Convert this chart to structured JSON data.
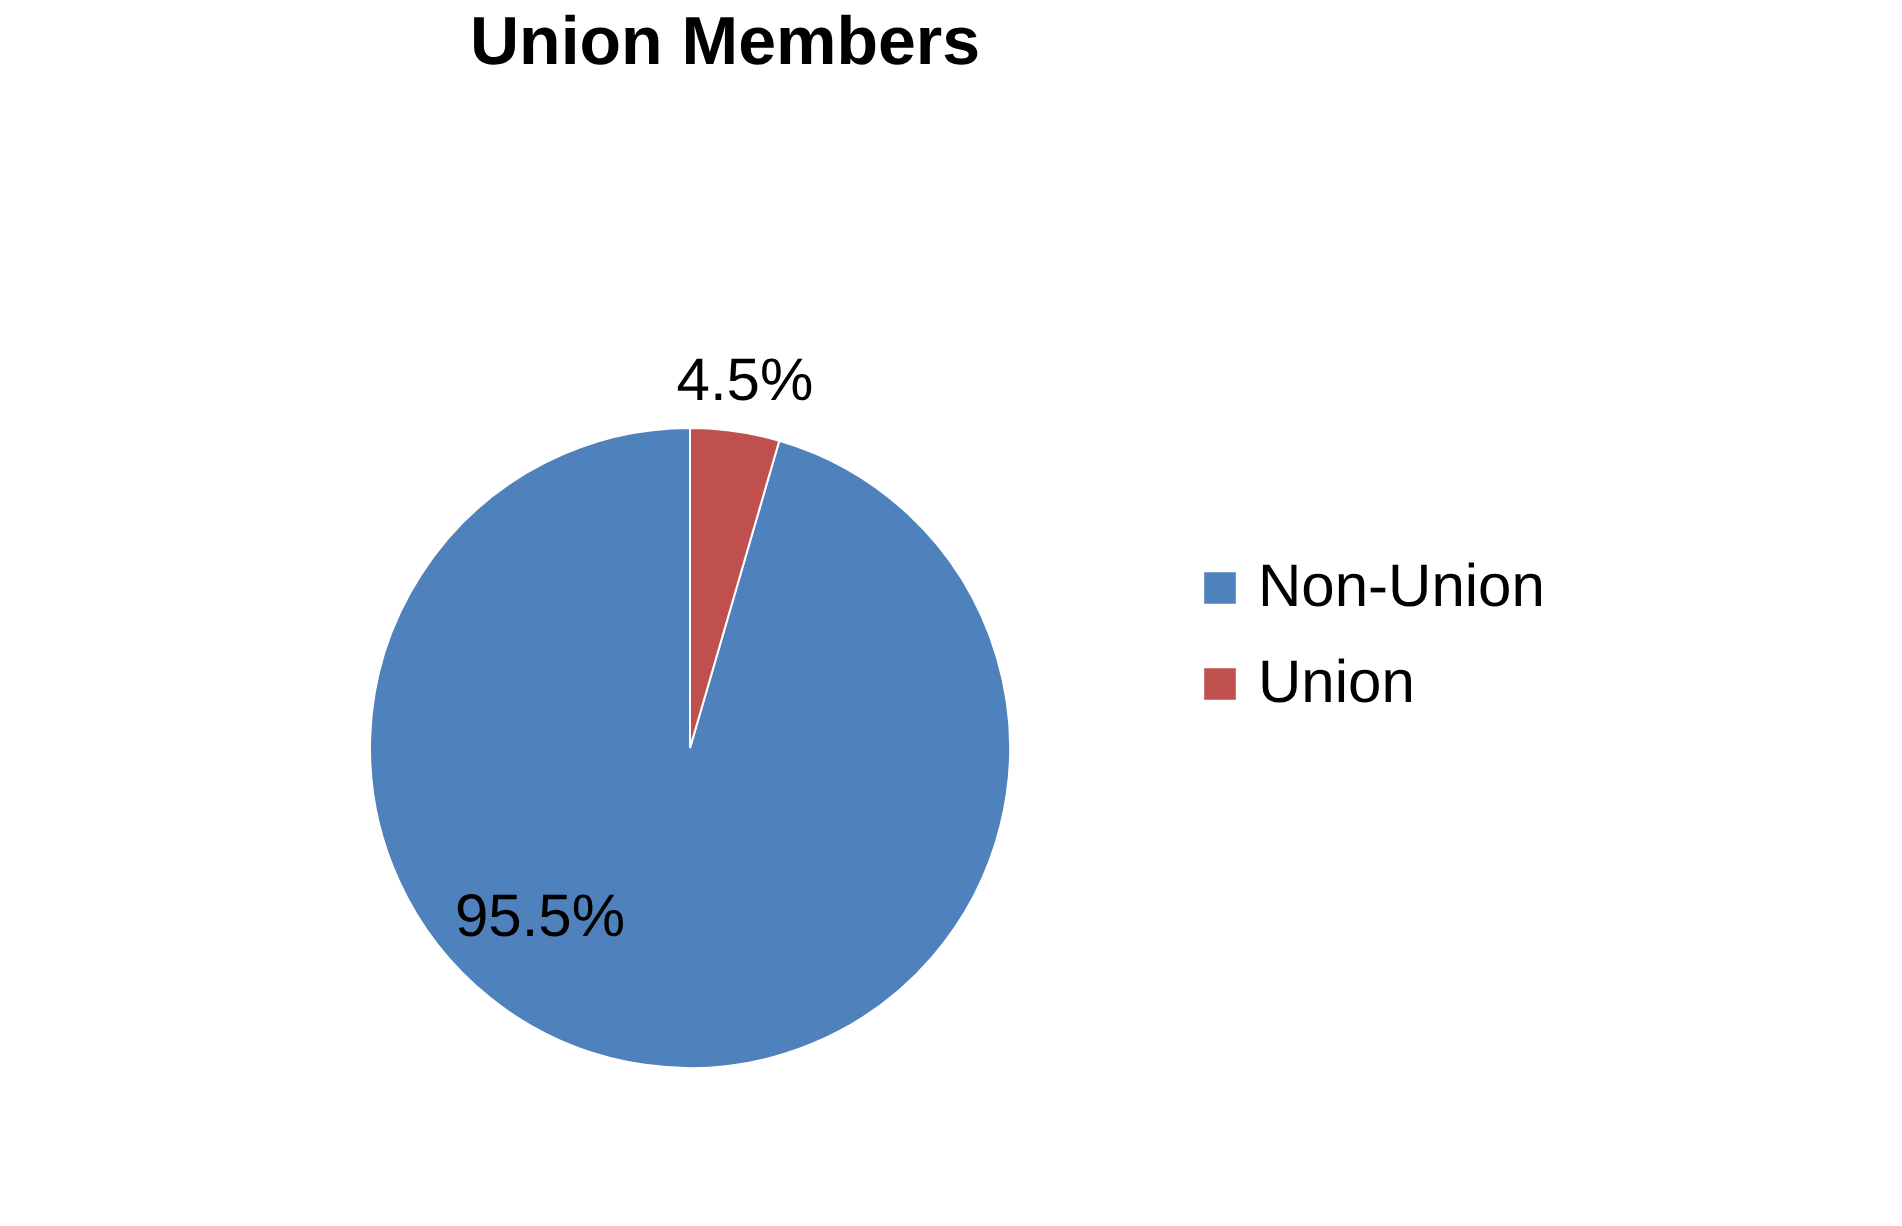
{
  "chart_data": {
    "type": "pie",
    "title": "Union Members",
    "categories": [
      "Non-Union",
      "Union"
    ],
    "values": [
      95.5,
      4.5
    ],
    "colors": [
      "#4f81bd",
      "#c0504d"
    ],
    "value_labels": [
      "95.5%",
      "4.5%"
    ],
    "legend": "right"
  }
}
